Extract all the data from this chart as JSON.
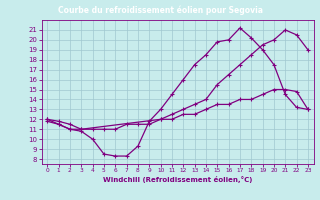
{
  "title": "Courbe du refroidissement éolien pour Segovia",
  "xlabel": "Windchill (Refroidissement éolien,°C)",
  "background_color": "#c8ecec",
  "header_color": "#9090c0",
  "line_color": "#800080",
  "grid_color": "#a0c8d0",
  "xlim": [
    -0.5,
    23.5
  ],
  "ylim": [
    7.5,
    22
  ],
  "xticks": [
    0,
    1,
    2,
    3,
    4,
    5,
    6,
    7,
    8,
    9,
    10,
    11,
    12,
    13,
    14,
    15,
    16,
    17,
    18,
    19,
    20,
    21,
    22,
    23
  ],
  "yticks": [
    8,
    9,
    10,
    11,
    12,
    13,
    14,
    15,
    16,
    17,
    18,
    19,
    20,
    21
  ],
  "curve1_x": [
    0,
    1,
    2,
    3,
    4,
    5,
    6,
    7,
    8,
    9,
    10,
    11,
    12,
    13,
    14,
    15,
    16,
    17,
    18,
    19,
    20,
    21,
    22,
    23
  ],
  "curve1_y": [
    11.8,
    11.5,
    11.0,
    10.8,
    10.0,
    8.5,
    8.3,
    8.3,
    9.3,
    11.8,
    13.0,
    14.5,
    16.0,
    17.5,
    18.5,
    19.8,
    20.0,
    21.2,
    20.2,
    19.0,
    17.5,
    14.5,
    13.2,
    13.0
  ],
  "curve2_x": [
    0,
    1,
    2,
    3,
    4,
    5,
    6,
    7,
    8,
    9,
    10,
    11,
    12,
    13,
    14,
    15,
    16,
    17,
    18,
    19,
    20,
    21,
    22,
    23
  ],
  "curve2_y": [
    12.0,
    11.8,
    11.5,
    11.0,
    11.0,
    11.0,
    11.0,
    11.5,
    11.5,
    11.5,
    12.0,
    12.0,
    12.5,
    12.5,
    13.0,
    13.5,
    13.5,
    14.0,
    14.0,
    14.5,
    15.0,
    15.0,
    14.8,
    13.0
  ],
  "curve3_x": [
    0,
    1,
    2,
    3,
    10,
    11,
    12,
    13,
    14,
    15,
    16,
    17,
    18,
    19,
    20,
    21,
    22,
    23
  ],
  "curve3_y": [
    12.0,
    11.5,
    11.0,
    11.0,
    12.0,
    12.5,
    13.0,
    13.5,
    14.0,
    15.5,
    16.5,
    17.5,
    18.5,
    19.5,
    20.0,
    21.0,
    20.5,
    19.0
  ]
}
